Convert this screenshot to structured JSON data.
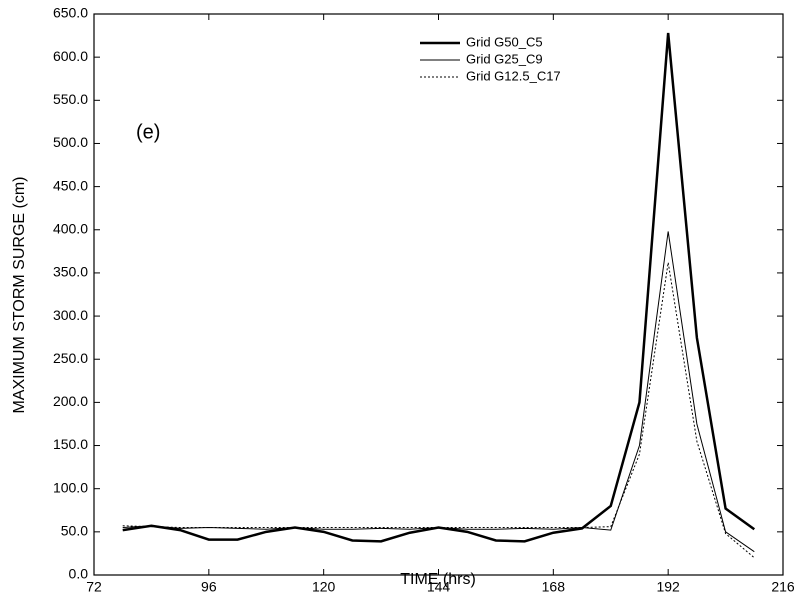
{
  "chart_data": {
    "type": "line",
    "annotation": "(e)",
    "x_label": "TIME (hrs)",
    "y_label": "MAXIMUM STORM SURGE (cm)",
    "x": [
      78,
      84,
      90,
      96,
      102,
      108,
      114,
      120,
      126,
      132,
      138,
      144,
      150,
      156,
      162,
      168,
      174,
      180,
      186,
      192,
      198,
      204,
      210
    ],
    "series": [
      {
        "name": "Grid G50_C5",
        "color": "#000000",
        "line_width": 2.5,
        "dash": "solid",
        "values": [
          52,
          57,
          52,
          41,
          41,
          50,
          55,
          50,
          40,
          39,
          49,
          55,
          50,
          40,
          39,
          49,
          54,
          80,
          200,
          628,
          275,
          77,
          53
        ]
      },
      {
        "name": "Grid G25_C9",
        "color": "#000000",
        "line_width": 1,
        "dash": "solid",
        "values": [
          55,
          57,
          54,
          55,
          54,
          53,
          55,
          53,
          53,
          54,
          53,
          55,
          53,
          53,
          54,
          53,
          55,
          52,
          150,
          398,
          175,
          50,
          27
        ]
      },
      {
        "name": "Grid G12.5_C17",
        "color": "#000000",
        "line_width": 1,
        "dash": "dotted",
        "values": [
          57,
          56,
          55,
          55,
          55,
          55,
          55,
          55,
          55,
          55,
          55,
          55,
          55,
          55,
          55,
          55,
          55,
          56,
          140,
          362,
          155,
          48,
          20
        ]
      }
    ],
    "xlim": [
      72,
      216
    ],
    "xticks": [
      72,
      96,
      120,
      144,
      168,
      192,
      216
    ],
    "ylim": [
      0,
      650
    ],
    "yticks": [
      {
        "value": 0,
        "label": "0.0"
      },
      {
        "value": 50,
        "label": "50.0"
      },
      {
        "value": 100,
        "label": "100.0"
      },
      {
        "value": 150,
        "label": "150.0"
      },
      {
        "value": 200,
        "label": "200.0"
      },
      {
        "value": 250,
        "label": "250.0"
      },
      {
        "value": 300,
        "label": "300.0"
      },
      {
        "value": 350,
        "label": "350.0"
      },
      {
        "value": 400,
        "label": "400.0"
      },
      {
        "value": 450,
        "label": "450.0"
      },
      {
        "value": 500,
        "label": "500.0"
      },
      {
        "value": 550,
        "label": "550.0"
      },
      {
        "value": 600,
        "label": "600.0"
      },
      {
        "value": 650,
        "label": "650.0"
      }
    ],
    "grid": false,
    "legend_position": "top-right"
  }
}
